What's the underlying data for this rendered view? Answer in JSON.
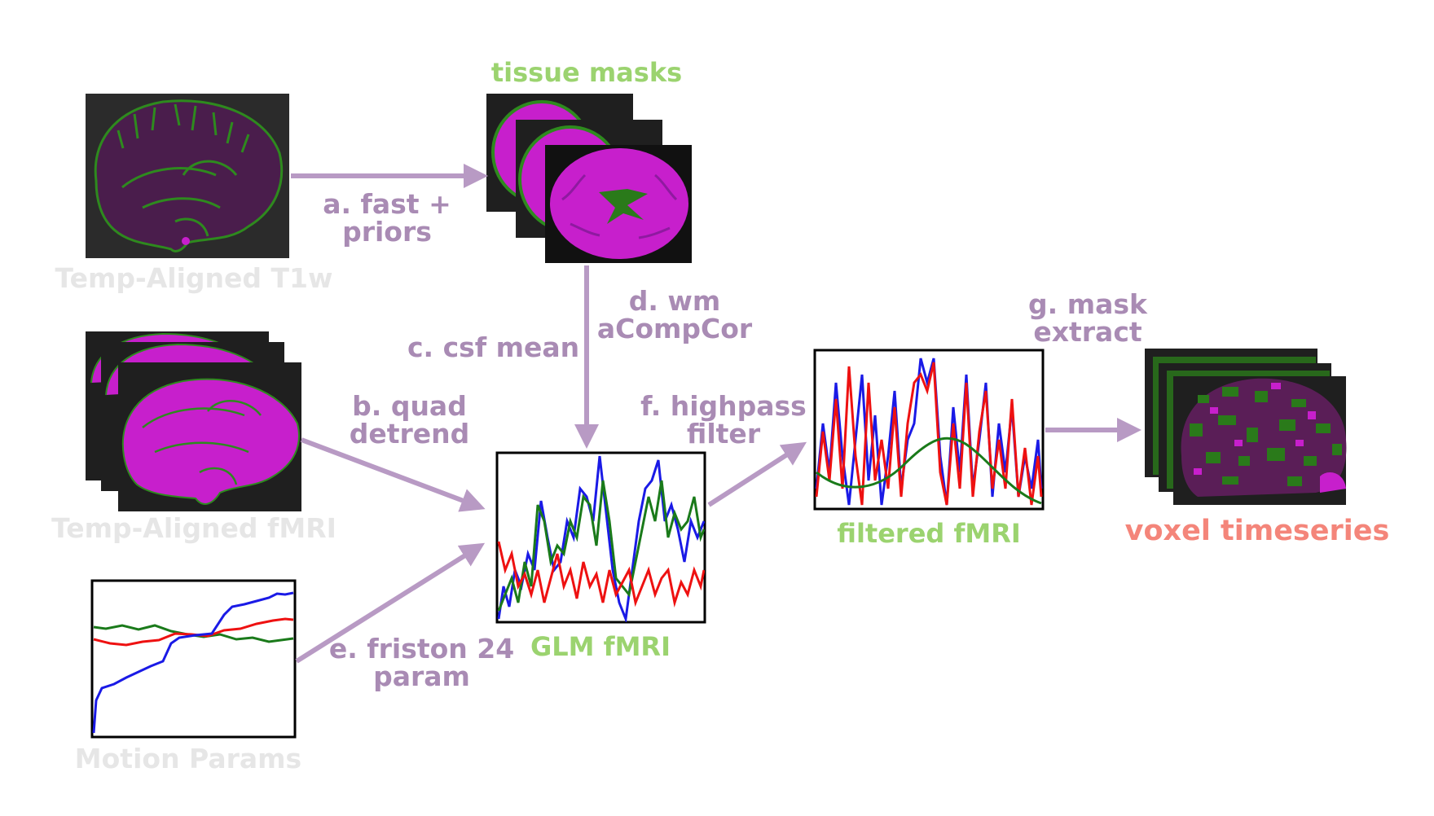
{
  "colors": {
    "arrow": "#b89ac4",
    "step_text": "#a98bb4",
    "output_text": "#9bd36f",
    "input_text": "#e6e6e6",
    "final_text": "#f4857a",
    "brain_purple": "#c71fcc",
    "brain_green": "#2a7a1a",
    "trace_blue": "#1a1ae6",
    "trace_red": "#ee1111",
    "trace_green": "#1a7a1a"
  },
  "nodes": {
    "t1w": {
      "label": "Temp-Aligned T1w"
    },
    "fmri": {
      "label": "Temp-Aligned fMRI"
    },
    "motion": {
      "label": "Motion Params"
    },
    "tissue": {
      "label": "tissue masks"
    },
    "glm": {
      "label": "GLM fMRI"
    },
    "filtered": {
      "label": "filtered fMRI"
    },
    "voxel": {
      "label": "voxel timeseries"
    }
  },
  "steps": {
    "a": {
      "line1": "a. fast +",
      "line2": "priors"
    },
    "b": {
      "line1": "b. quad",
      "line2": "detrend"
    },
    "c": {
      "line1": "c. csf mean"
    },
    "d": {
      "line1": "d. wm",
      "line2": "aCompCor"
    },
    "e": {
      "line1": "e. friston 24",
      "line2": "param"
    },
    "f": {
      "line1": "f. highpass",
      "line2": "filter"
    },
    "g": {
      "line1": "g. mask",
      "line2": "extract"
    }
  }
}
